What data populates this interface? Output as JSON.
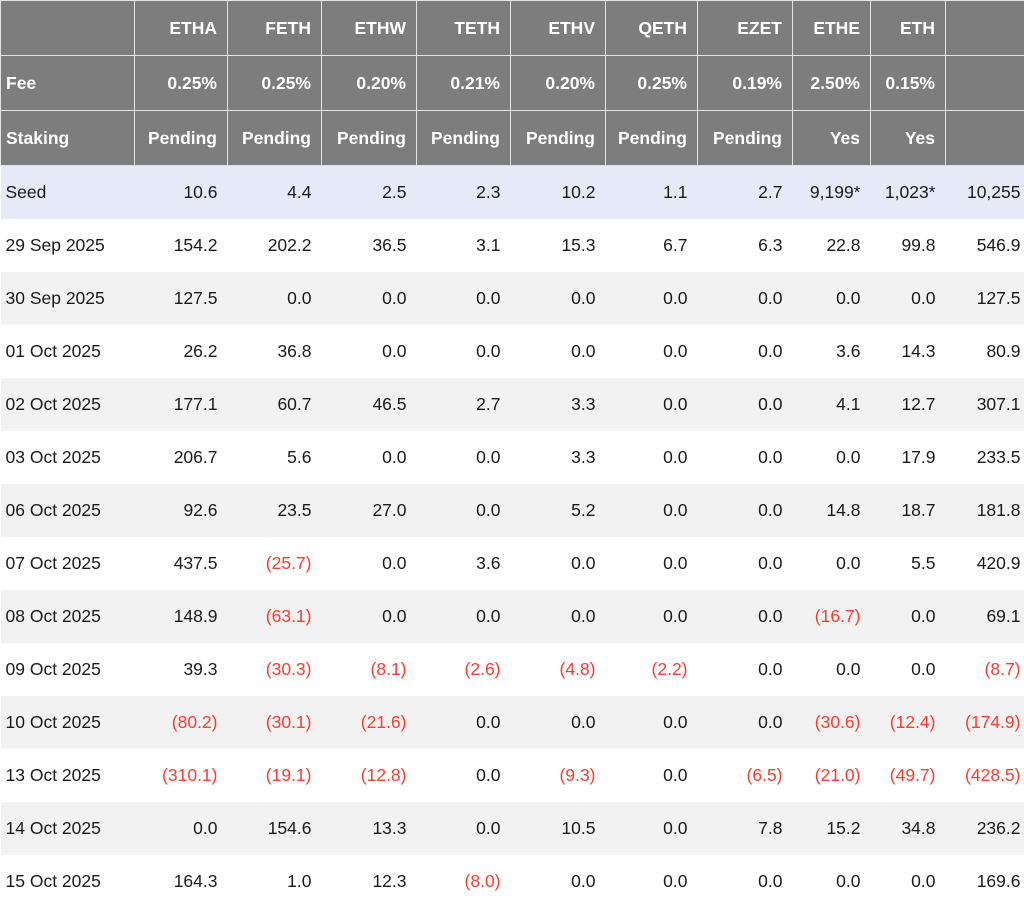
{
  "table": {
    "fee_label": "Fee",
    "staking_label": "Staking",
    "tickers": [
      "ETHA",
      "FETH",
      "ETHW",
      "TETH",
      "ETHV",
      "QETH",
      "EZET",
      "ETHE",
      "ETH"
    ],
    "fees": [
      "0.25%",
      "0.25%",
      "0.20%",
      "0.21%",
      "0.20%",
      "0.25%",
      "0.19%",
      "2.50%",
      "0.15%"
    ],
    "staking": [
      "Pending",
      "Pending",
      "Pending",
      "Pending",
      "Pending",
      "Pending",
      "Pending",
      "Yes",
      "Yes"
    ],
    "rows": [
      {
        "label": "Seed",
        "highlight": true,
        "values": [
          "10.6",
          "4.4",
          "2.5",
          "2.3",
          "10.2",
          "1.1",
          "2.7",
          "9,199*",
          "1,023*",
          "10,255"
        ]
      },
      {
        "label": "29 Sep 2025",
        "highlight": false,
        "values": [
          "154.2",
          "202.2",
          "36.5",
          "3.1",
          "15.3",
          "6.7",
          "6.3",
          "22.8",
          "99.8",
          "546.9"
        ]
      },
      {
        "label": "30 Sep 2025",
        "highlight": false,
        "values": [
          "127.5",
          "0.0",
          "0.0",
          "0.0",
          "0.0",
          "0.0",
          "0.0",
          "0.0",
          "0.0",
          "127.5"
        ]
      },
      {
        "label": "01 Oct 2025",
        "highlight": false,
        "values": [
          "26.2",
          "36.8",
          "0.0",
          "0.0",
          "0.0",
          "0.0",
          "0.0",
          "3.6",
          "14.3",
          "80.9"
        ]
      },
      {
        "label": "02 Oct 2025",
        "highlight": false,
        "values": [
          "177.1",
          "60.7",
          "46.5",
          "2.7",
          "3.3",
          "0.0",
          "0.0",
          "4.1",
          "12.7",
          "307.1"
        ]
      },
      {
        "label": "03 Oct 2025",
        "highlight": false,
        "values": [
          "206.7",
          "5.6",
          "0.0",
          "0.0",
          "3.3",
          "0.0",
          "0.0",
          "0.0",
          "17.9",
          "233.5"
        ]
      },
      {
        "label": "06 Oct 2025",
        "highlight": false,
        "values": [
          "92.6",
          "23.5",
          "27.0",
          "0.0",
          "5.2",
          "0.0",
          "0.0",
          "14.8",
          "18.7",
          "181.8"
        ]
      },
      {
        "label": "07 Oct 2025",
        "highlight": false,
        "values": [
          "437.5",
          "(25.7)",
          "0.0",
          "3.6",
          "0.0",
          "0.0",
          "0.0",
          "0.0",
          "5.5",
          "420.9"
        ]
      },
      {
        "label": "08 Oct 2025",
        "highlight": false,
        "values": [
          "148.9",
          "(63.1)",
          "0.0",
          "0.0",
          "0.0",
          "0.0",
          "0.0",
          "(16.7)",
          "0.0",
          "69.1"
        ]
      },
      {
        "label": "09 Oct 2025",
        "highlight": false,
        "values": [
          "39.3",
          "(30.3)",
          "(8.1)",
          "(2.6)",
          "(4.8)",
          "(2.2)",
          "0.0",
          "0.0",
          "0.0",
          "(8.7)"
        ]
      },
      {
        "label": "10 Oct 2025",
        "highlight": false,
        "values": [
          "(80.2)",
          "(30.1)",
          "(21.6)",
          "0.0",
          "0.0",
          "0.0",
          "0.0",
          "(30.6)",
          "(12.4)",
          "(174.9)"
        ]
      },
      {
        "label": "13 Oct 2025",
        "highlight": false,
        "values": [
          "(310.1)",
          "(19.1)",
          "(12.8)",
          "0.0",
          "(9.3)",
          "0.0",
          "(6.5)",
          "(21.0)",
          "(49.7)",
          "(428.5)"
        ]
      },
      {
        "label": "14 Oct 2025",
        "highlight": false,
        "values": [
          "0.0",
          "154.6",
          "13.3",
          "0.0",
          "10.5",
          "0.0",
          "7.8",
          "15.2",
          "34.8",
          "236.2"
        ]
      },
      {
        "label": "15 Oct 2025",
        "highlight": false,
        "values": [
          "164.3",
          "1.0",
          "12.3",
          "(8.0)",
          "0.0",
          "0.0",
          "0.0",
          "0.0",
          "0.0",
          "169.6"
        ]
      }
    ],
    "colors": {
      "header_bg": "#7d7d7d",
      "header_text": "#ffffff",
      "seed_row_bg": "#e6eaf8",
      "stripe_row_bg": "#f2f2f2",
      "negative_text": "#ff3b30",
      "body_text": "#1a1a1a"
    }
  },
  "chart_data": {
    "type": "table",
    "columns": [
      "ETHA",
      "FETH",
      "ETHW",
      "TETH",
      "ETHV",
      "QETH",
      "EZET",
      "ETHE",
      "ETH"
    ],
    "fees_percent": [
      0.25,
      0.25,
      0.2,
      0.21,
      0.2,
      0.25,
      0.19,
      2.5,
      0.15
    ],
    "staking": [
      "Pending",
      "Pending",
      "Pending",
      "Pending",
      "Pending",
      "Pending",
      "Pending",
      "Yes",
      "Yes"
    ],
    "rows": [
      {
        "label": "Seed",
        "values": [
          10.6,
          4.4,
          2.5,
          2.3,
          10.2,
          1.1,
          2.7,
          9199,
          1023
        ],
        "total": 10255
      },
      {
        "label": "29 Sep 2025",
        "values": [
          154.2,
          202.2,
          36.5,
          3.1,
          15.3,
          6.7,
          6.3,
          22.8,
          99.8
        ],
        "total": 546.9
      },
      {
        "label": "30 Sep 2025",
        "values": [
          127.5,
          0.0,
          0.0,
          0.0,
          0.0,
          0.0,
          0.0,
          0.0,
          0.0
        ],
        "total": 127.5
      },
      {
        "label": "01 Oct 2025",
        "values": [
          26.2,
          36.8,
          0.0,
          0.0,
          0.0,
          0.0,
          0.0,
          3.6,
          14.3
        ],
        "total": 80.9
      },
      {
        "label": "02 Oct 2025",
        "values": [
          177.1,
          60.7,
          46.5,
          2.7,
          3.3,
          0.0,
          0.0,
          4.1,
          12.7
        ],
        "total": 307.1
      },
      {
        "label": "03 Oct 2025",
        "values": [
          206.7,
          5.6,
          0.0,
          0.0,
          3.3,
          0.0,
          0.0,
          0.0,
          17.9
        ],
        "total": 233.5
      },
      {
        "label": "06 Oct 2025",
        "values": [
          92.6,
          23.5,
          27.0,
          0.0,
          5.2,
          0.0,
          0.0,
          14.8,
          18.7
        ],
        "total": 181.8
      },
      {
        "label": "07 Oct 2025",
        "values": [
          437.5,
          -25.7,
          0.0,
          3.6,
          0.0,
          0.0,
          0.0,
          0.0,
          5.5
        ],
        "total": 420.9
      },
      {
        "label": "08 Oct 2025",
        "values": [
          148.9,
          -63.1,
          0.0,
          0.0,
          0.0,
          0.0,
          0.0,
          -16.7,
          0.0
        ],
        "total": 69.1
      },
      {
        "label": "09 Oct 2025",
        "values": [
          39.3,
          -30.3,
          -8.1,
          -2.6,
          -4.8,
          -2.2,
          0.0,
          0.0,
          0.0
        ],
        "total": -8.7
      },
      {
        "label": "10 Oct 2025",
        "values": [
          -80.2,
          -30.1,
          -21.6,
          0.0,
          0.0,
          0.0,
          0.0,
          -30.6,
          -12.4
        ],
        "total": -174.9
      },
      {
        "label": "13 Oct 2025",
        "values": [
          -310.1,
          -19.1,
          -12.8,
          0.0,
          -9.3,
          0.0,
          -6.5,
          -21.0,
          -49.7
        ],
        "total": -428.5
      },
      {
        "label": "14 Oct 2025",
        "values": [
          0.0,
          154.6,
          13.3,
          0.0,
          10.5,
          0.0,
          7.8,
          15.2,
          34.8
        ],
        "total": 236.2
      },
      {
        "label": "15 Oct 2025",
        "values": [
          164.3,
          1.0,
          12.3,
          -8.0,
          0.0,
          0.0,
          0.0,
          0.0,
          0.0
        ],
        "total": 169.6
      }
    ],
    "notes": "Negative values rendered in red parentheses; Seed values for ETHE and ETH marked with asterisk."
  }
}
